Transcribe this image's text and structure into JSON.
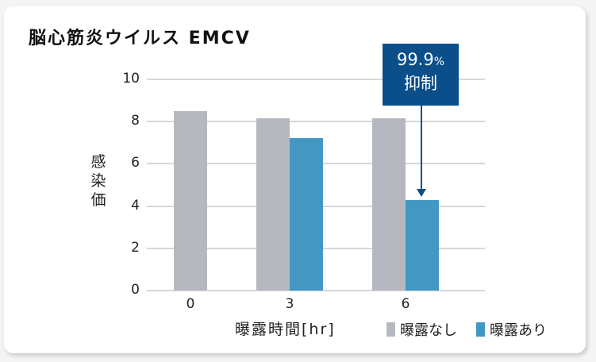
{
  "title": "脳心筋炎ウイルス EMCV",
  "chart_data": {
    "type": "bar",
    "title": "脳心筋炎ウイルス EMCV",
    "xlabel": "曝露時間[hr]",
    "ylabel": "感染価",
    "categories": [
      "0",
      "3",
      "6"
    ],
    "series": [
      {
        "name": "曝露なし",
        "color": "#b6b8c0",
        "values": [
          8.5,
          8.15,
          8.15
        ]
      },
      {
        "name": "曝露あり",
        "color": "#4398c3",
        "values": [
          null,
          7.2,
          4.3
        ]
      }
    ],
    "yticks": [
      "0",
      "2",
      "4",
      "6",
      "8",
      "10"
    ],
    "ylim": [
      0,
      10
    ],
    "grid": true,
    "legend_position": "bottom-right",
    "annotation": {
      "value": "99.9",
      "unit": "%",
      "label": "抑制",
      "target": "6hr 曝露あり",
      "color": "#0b4f8a"
    }
  },
  "legend": [
    {
      "label": "曝露なし",
      "color": "#b6b8c0"
    },
    {
      "label": "曝露あり",
      "color": "#4398c3"
    }
  ]
}
